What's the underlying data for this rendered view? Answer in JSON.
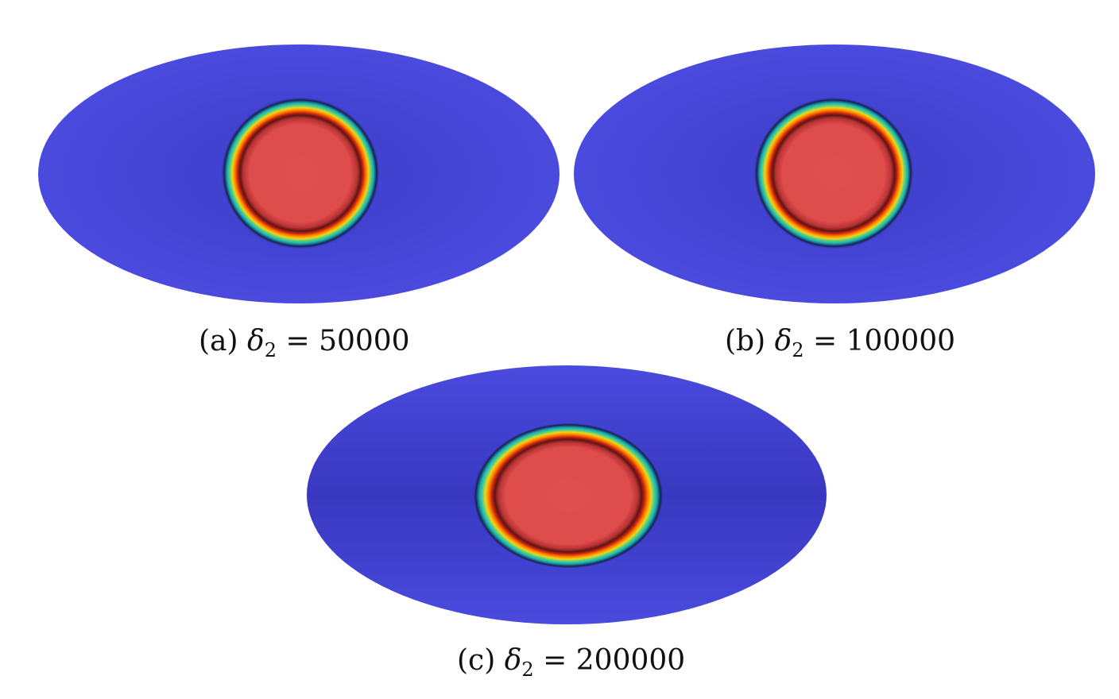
{
  "figure": {
    "panels": [
      {
        "id": "a",
        "label": "(a)",
        "symbol": "δ",
        "subscript": "2",
        "equals": "=",
        "value": "50000"
      },
      {
        "id": "b",
        "label": "(b)",
        "symbol": "δ",
        "subscript": "2",
        "equals": "=",
        "value": "100000"
      },
      {
        "id": "c",
        "label": "(c)",
        "symbol": "δ",
        "subscript": "2",
        "equals": "=",
        "value": "200000"
      }
    ],
    "colors": {
      "background": "#ffffff",
      "domain_fill": "#4545d6",
      "domain_edge": "#3e3ec8",
      "interface_dark": "#1a1430",
      "interface_cyan": "#1ab0b4",
      "interface_green": "#4fd28a",
      "interface_yellow": "#f2d414",
      "interface_orange": "#ff8a00",
      "interface_red": "#d02a10",
      "interior_dark": "#3a0e12",
      "interior_fill": "#e05050"
    }
  }
}
